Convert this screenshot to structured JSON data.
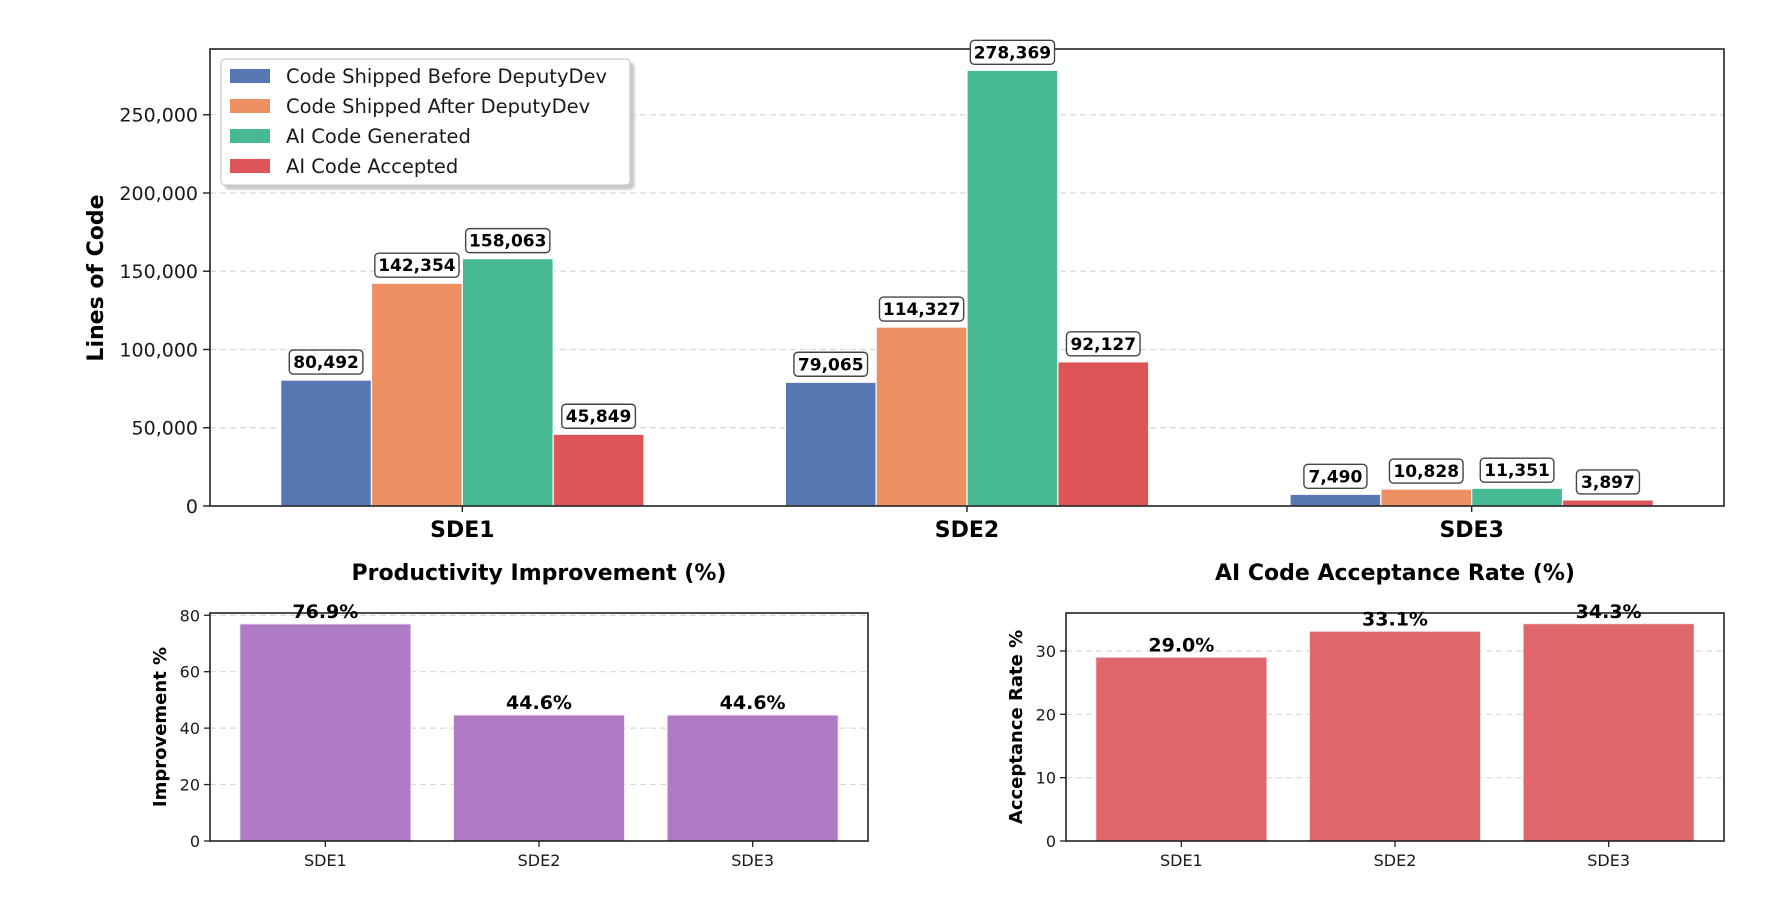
{
  "chart_data": [
    {
      "type": "bar",
      "title": "",
      "xlabel": "",
      "ylabel": "Lines of Code",
      "categories": [
        "SDE1",
        "SDE2",
        "SDE3"
      ],
      "ylim": [
        0,
        292000
      ],
      "yticks": [
        0,
        50000,
        100000,
        150000,
        200000,
        250000
      ],
      "ytick_labels": [
        "0",
        "50,000",
        "100,000",
        "150,000",
        "200,000",
        "250,000"
      ],
      "grid": true,
      "legend_position": "top-left",
      "series": [
        {
          "name": "Code Shipped Before DeputyDev",
          "color": "#5778B2",
          "values": [
            80492,
            79065,
            7490
          ],
          "labels": [
            "80,492",
            "79,065",
            "7,490"
          ]
        },
        {
          "name": "Code Shipped After DeputyDev",
          "color": "#EC9064",
          "values": [
            142354,
            114327,
            10828
          ],
          "labels": [
            "142,354",
            "114,327",
            "10,828"
          ]
        },
        {
          "name": "AI Code Generated",
          "color": "#47BA94",
          "values": [
            158063,
            278369,
            11351
          ],
          "labels": [
            "158,063",
            "278,369",
            "11,351"
          ]
        },
        {
          "name": "AI Code Accepted",
          "color": "#DF5557",
          "values": [
            45849,
            92127,
            3897
          ],
          "labels": [
            "45,849",
            "92,127",
            "3,897"
          ]
        }
      ]
    },
    {
      "type": "bar",
      "title": "Productivity Improvement (%)",
      "xlabel": "",
      "ylabel": "Improvement %",
      "categories": [
        "SDE1",
        "SDE2",
        "SDE3"
      ],
      "values": [
        76.9,
        44.6,
        44.6
      ],
      "labels": [
        "76.9%",
        "44.6%",
        "44.6%"
      ],
      "color": "#AF7BC4",
      "ylim": [
        0,
        80.8
      ],
      "yticks": [
        0,
        20,
        40,
        60,
        80
      ],
      "ytick_labels": [
        "0",
        "20",
        "40",
        "60",
        "80"
      ],
      "grid": true
    },
    {
      "type": "bar",
      "title": "AI Code Acceptance Rate (%)",
      "xlabel": "",
      "ylabel": "Acceptance Rate %",
      "categories": [
        "SDE1",
        "SDE2",
        "SDE3"
      ],
      "values": [
        29.0,
        33.1,
        34.3
      ],
      "labels": [
        "29.0%",
        "33.1%",
        "34.3%"
      ],
      "color": "#E06769",
      "ylim": [
        0,
        36.0
      ],
      "yticks": [
        0,
        10,
        20,
        30
      ],
      "ytick_labels": [
        "0",
        "10",
        "20",
        "30"
      ],
      "grid": true
    }
  ]
}
